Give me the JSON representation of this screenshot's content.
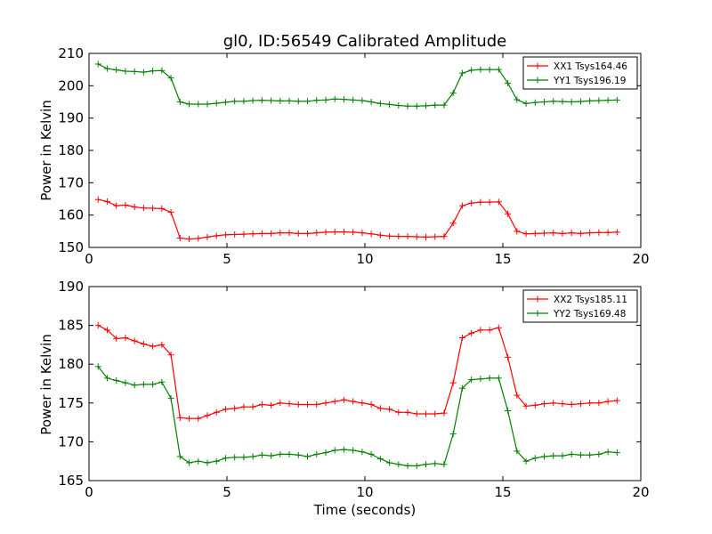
{
  "chart_data": [
    {
      "type": "line",
      "title": "gl0, ID:56549 Calibrated Amplitude",
      "xlabel": "",
      "ylabel": "Power in Kelvin",
      "xlim": [
        0,
        20
      ],
      "ylim": [
        150,
        210
      ],
      "xticks": [
        "0",
        "5",
        "10",
        "15",
        "20"
      ],
      "yticks": [
        "150",
        "160",
        "170",
        "180",
        "190",
        "200",
        "210"
      ],
      "legend_position": "top-right",
      "x": [
        0.33,
        0.66,
        0.99,
        1.32,
        1.65,
        1.98,
        2.31,
        2.64,
        2.97,
        3.3,
        3.63,
        3.96,
        4.29,
        4.62,
        4.95,
        5.28,
        5.61,
        5.94,
        6.27,
        6.6,
        6.93,
        7.26,
        7.59,
        7.92,
        8.25,
        8.58,
        8.91,
        9.24,
        9.57,
        9.9,
        10.23,
        10.56,
        10.89,
        11.22,
        11.55,
        11.88,
        12.21,
        12.54,
        12.87,
        13.2,
        13.53,
        13.86,
        14.19,
        14.52,
        14.85,
        15.18,
        15.51,
        15.84,
        16.17,
        16.5,
        16.83,
        17.16,
        17.49,
        17.82,
        18.15,
        18.48,
        18.81,
        19.14
      ],
      "series": [
        {
          "name": "XX1 Tsys164.46",
          "color": "#ff0000",
          "values": [
            164.8,
            164.2,
            162.9,
            163.1,
            162.5,
            162.2,
            162.1,
            162.0,
            160.9,
            152.9,
            152.6,
            152.8,
            153.2,
            153.6,
            153.9,
            154.0,
            154.1,
            154.2,
            154.3,
            154.3,
            154.5,
            154.5,
            154.3,
            154.3,
            154.5,
            154.7,
            154.8,
            154.8,
            154.7,
            154.5,
            154.2,
            153.8,
            153.5,
            153.4,
            153.4,
            153.3,
            153.2,
            153.3,
            153.4,
            157.5,
            162.9,
            163.7,
            164.0,
            164.0,
            164.1,
            160.4,
            155.0,
            154.2,
            154.3,
            154.4,
            154.5,
            154.3,
            154.5,
            154.3,
            154.5,
            154.6,
            154.6,
            154.7
          ]
        },
        {
          "name": "YY1 Tsys196.19",
          "color": "#008000",
          "values": [
            206.7,
            205.3,
            204.9,
            204.5,
            204.4,
            204.2,
            204.6,
            204.7,
            202.4,
            195.0,
            194.3,
            194.3,
            194.3,
            194.6,
            194.9,
            195.2,
            195.2,
            195.4,
            195.5,
            195.4,
            195.3,
            195.3,
            195.2,
            195.2,
            195.5,
            195.6,
            195.9,
            195.8,
            195.6,
            195.4,
            195.0,
            194.5,
            194.2,
            193.9,
            193.7,
            193.7,
            193.8,
            194.0,
            194.0,
            197.8,
            203.9,
            204.8,
            205.0,
            205.0,
            205.0,
            200.8,
            195.7,
            194.5,
            194.8,
            195.0,
            195.2,
            195.1,
            195.0,
            195.1,
            195.3,
            195.4,
            195.5,
            195.6
          ]
        }
      ]
    },
    {
      "type": "line",
      "title": "",
      "xlabel": "Time (seconds)",
      "ylabel": "Power in Kelvin",
      "xlim": [
        0,
        20
      ],
      "ylim": [
        165,
        190
      ],
      "xticks": [
        "0",
        "5",
        "10",
        "15",
        "20"
      ],
      "yticks": [
        "165",
        "170",
        "175",
        "180",
        "185",
        "190"
      ],
      "legend_position": "top-right",
      "x": [
        0.33,
        0.66,
        0.99,
        1.32,
        1.65,
        1.98,
        2.31,
        2.64,
        2.97,
        3.3,
        3.63,
        3.96,
        4.29,
        4.62,
        4.95,
        5.28,
        5.61,
        5.94,
        6.27,
        6.6,
        6.93,
        7.26,
        7.59,
        7.92,
        8.25,
        8.58,
        8.91,
        9.24,
        9.57,
        9.9,
        10.23,
        10.56,
        10.89,
        11.22,
        11.55,
        11.88,
        12.21,
        12.54,
        12.87,
        13.2,
        13.53,
        13.86,
        14.19,
        14.52,
        14.85,
        15.18,
        15.51,
        15.84,
        16.17,
        16.5,
        16.83,
        17.16,
        17.49,
        17.82,
        18.15,
        18.48,
        18.81,
        19.14
      ],
      "series": [
        {
          "name": "XX2 Tsys185.11",
          "color": "#ff0000",
          "values": [
            185.0,
            184.4,
            183.3,
            183.4,
            183.0,
            182.6,
            182.3,
            182.5,
            181.2,
            173.1,
            173.0,
            173.0,
            173.4,
            173.8,
            174.2,
            174.3,
            174.5,
            174.5,
            174.8,
            174.7,
            175.0,
            174.9,
            174.8,
            174.8,
            174.8,
            175.0,
            175.2,
            175.4,
            175.2,
            175.0,
            174.8,
            174.3,
            174.2,
            173.8,
            173.8,
            173.6,
            173.6,
            173.6,
            173.7,
            177.6,
            183.4,
            184.0,
            184.4,
            184.4,
            184.7,
            180.9,
            176.0,
            174.6,
            174.7,
            174.9,
            175.0,
            174.9,
            174.8,
            174.9,
            175.0,
            175.0,
            175.2,
            175.3
          ]
        },
        {
          "name": "YY2 Tsys169.48",
          "color": "#008000",
          "values": [
            179.7,
            178.2,
            177.9,
            177.6,
            177.3,
            177.4,
            177.4,
            177.7,
            175.6,
            168.1,
            167.3,
            167.5,
            167.3,
            167.5,
            167.9,
            168.0,
            168.0,
            168.1,
            168.3,
            168.2,
            168.4,
            168.4,
            168.3,
            168.1,
            168.4,
            168.6,
            168.9,
            169.0,
            168.9,
            168.7,
            168.4,
            167.8,
            167.3,
            167.1,
            166.9,
            166.9,
            167.1,
            167.2,
            167.1,
            171.0,
            176.9,
            178.0,
            178.1,
            178.2,
            178.2,
            174.0,
            168.8,
            167.5,
            167.9,
            168.1,
            168.2,
            168.2,
            168.4,
            168.3,
            168.3,
            168.4,
            168.7,
            168.6
          ]
        }
      ]
    }
  ]
}
